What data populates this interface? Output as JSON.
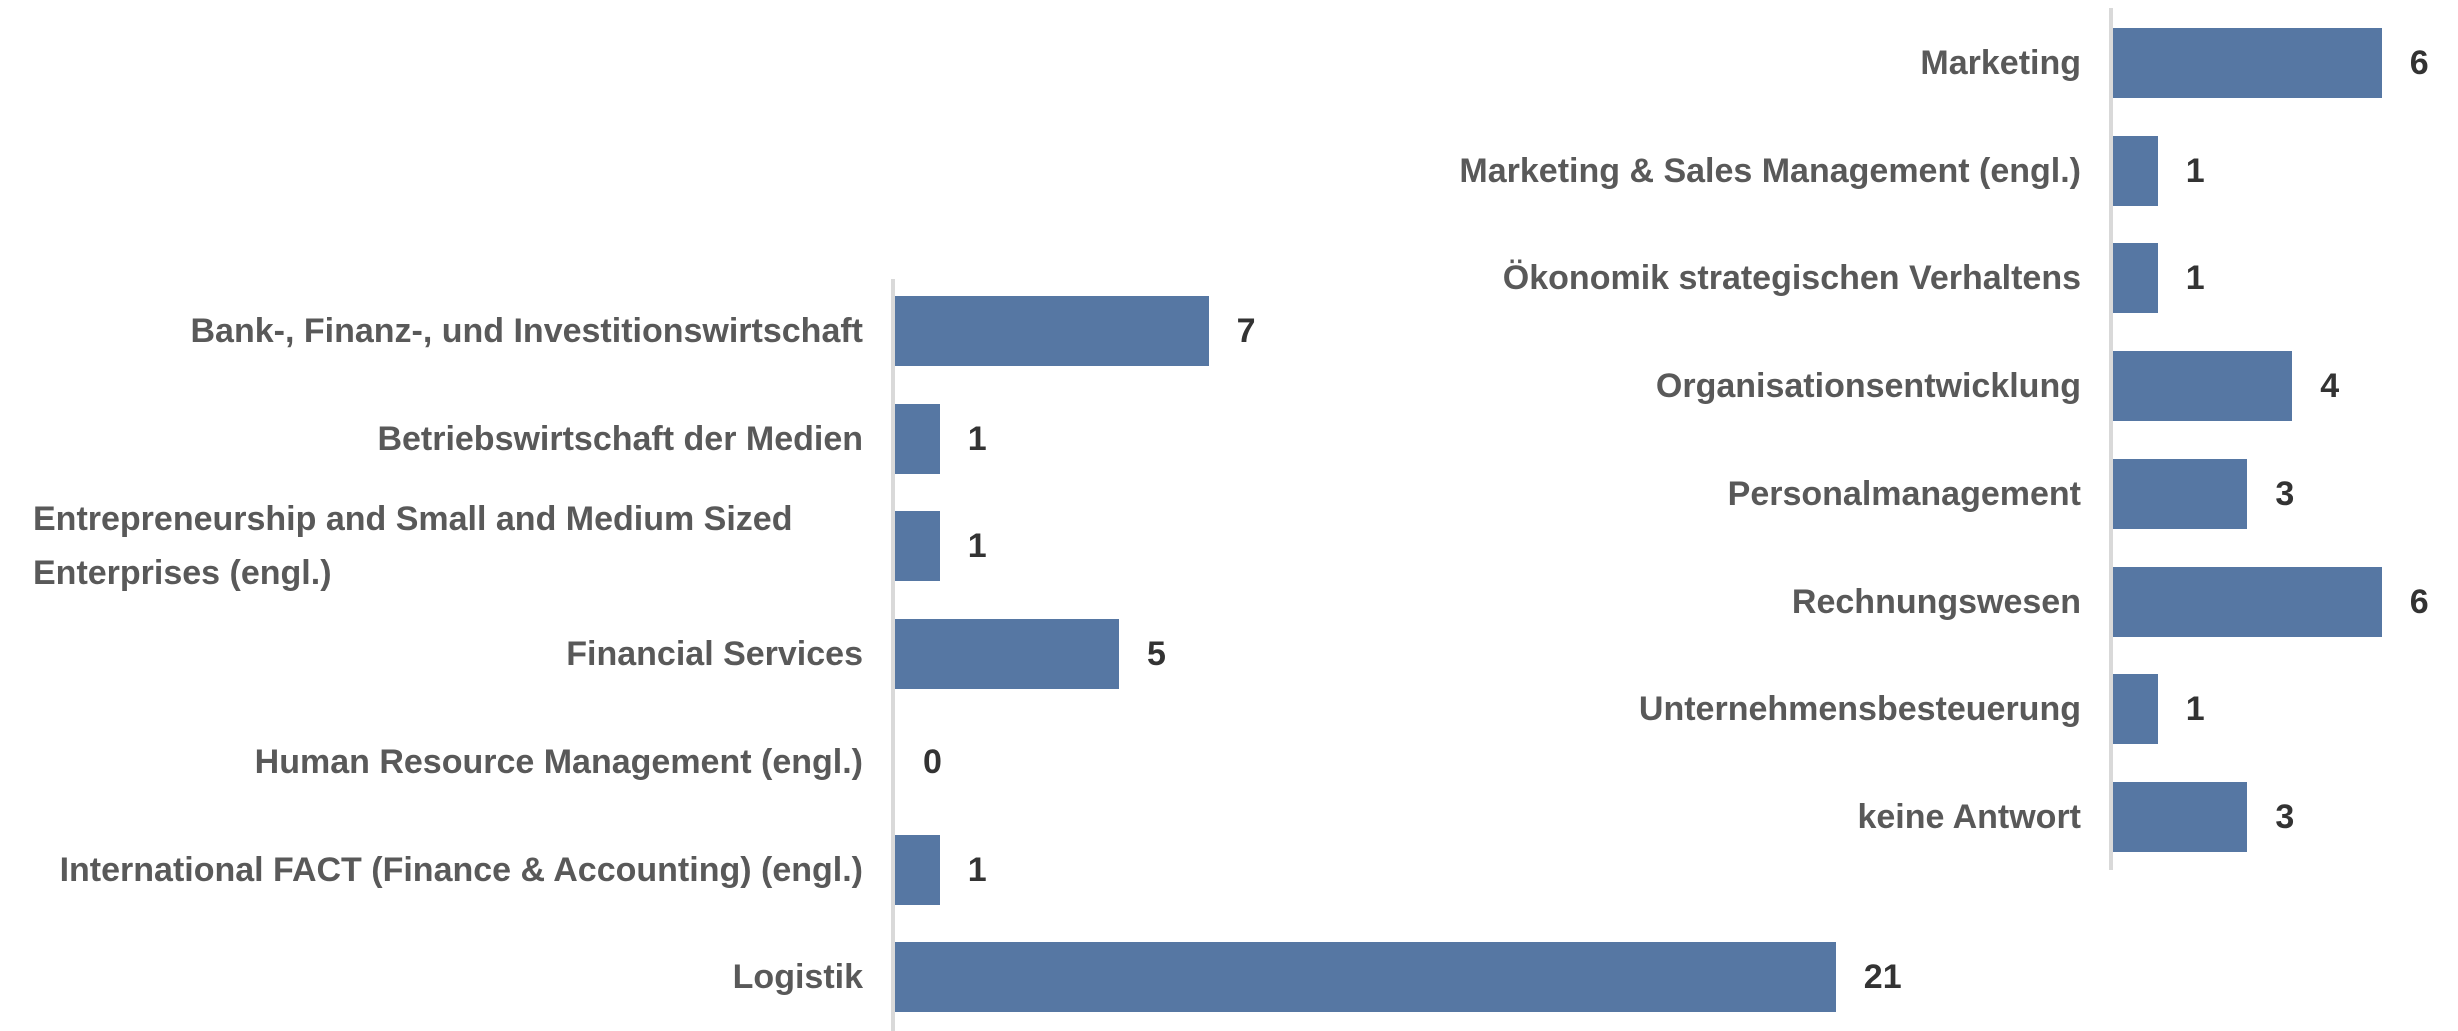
{
  "chart_data": [
    {
      "type": "bar",
      "orientation": "horizontal",
      "color": "#5677a3",
      "categories": [
        "Bank-, Finanz-, und Investitionswirtschaft",
        "Betriebswirtschaft der Medien",
        "Entrepreneurship and Small and Medium Sized Enterprises (engl.)",
        "Financial Services",
        "Human Resource Management (engl.)",
        "International FACT (Finance & Accounting) (engl.)",
        "Logistik"
      ],
      "values": [
        7,
        1,
        1,
        5,
        0,
        1,
        21
      ]
    },
    {
      "type": "bar",
      "orientation": "horizontal",
      "color": "#5677a3",
      "categories": [
        "Marketing",
        "Marketing & Sales Management (engl.)",
        "Ökonomik strategischen Verhaltens",
        "Organisationsentwicklung",
        "Personalmanagement",
        "Rechnungswesen",
        "Unternehmensbesteuerung",
        "keine Antwort"
      ],
      "values": [
        6,
        1,
        1,
        4,
        3,
        6,
        1,
        3
      ]
    }
  ]
}
